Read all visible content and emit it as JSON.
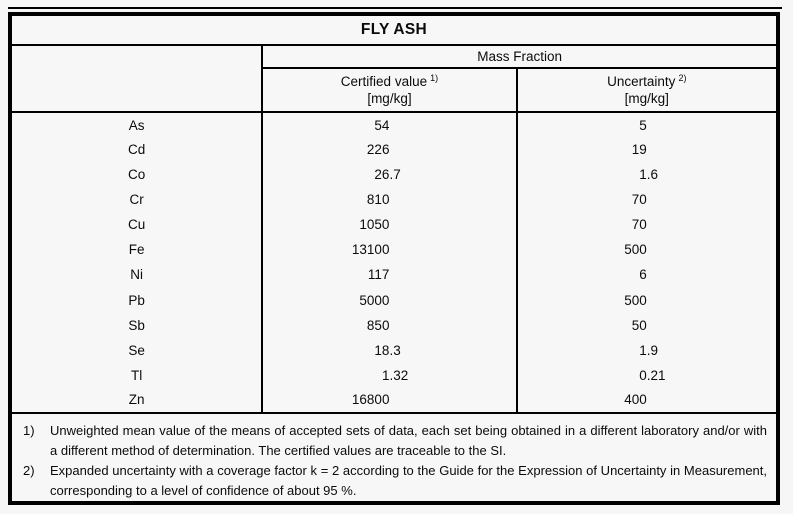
{
  "table": {
    "title": "FLY ASH",
    "group_header": "Mass Fraction",
    "columns": {
      "certified": {
        "label": "Certified value",
        "footnote_ref": "1)",
        "unit": "[mg/kg]"
      },
      "uncertainty": {
        "label": "Uncertainty",
        "footnote_ref": "2)",
        "unit": "[mg/kg]"
      }
    },
    "rows": [
      {
        "element": "As",
        "certified": "54",
        "uncertainty": "5"
      },
      {
        "element": "Cd",
        "certified": "226",
        "uncertainty": "19"
      },
      {
        "element": "Co",
        "certified": "26.7",
        "uncertainty": "1.6"
      },
      {
        "element": "Cr",
        "certified": "810",
        "uncertainty": "70"
      },
      {
        "element": "Cu",
        "certified": "1050",
        "uncertainty": "70"
      },
      {
        "element": "Fe",
        "certified": "13100",
        "uncertainty": "500"
      },
      {
        "element": "Ni",
        "certified": "117",
        "uncertainty": "6"
      },
      {
        "element": "Pb",
        "certified": "5000",
        "uncertainty": "500"
      },
      {
        "element": "Sb",
        "certified": "850",
        "uncertainty": "50"
      },
      {
        "element": "Se",
        "certified": "18.3",
        "uncertainty": "1.9"
      },
      {
        "element": "Tl",
        "certified": "1.32",
        "uncertainty": "0.21"
      },
      {
        "element": "Zn",
        "certified": "16800",
        "uncertainty": "400"
      }
    ],
    "footnotes": [
      {
        "marker": "1)",
        "text": "Unweighted mean value of the means of accepted sets of data, each set being obtained in a different laboratory and/or with a different method of determination. The certified values are traceable to the SI."
      },
      {
        "marker": "2)",
        "text": "Expanded uncertainty with a coverage factor k = 2 according to the Guide for the Expression of Uncertainty in Measurement, corresponding to a level of confidence of about 95 %."
      }
    ]
  }
}
